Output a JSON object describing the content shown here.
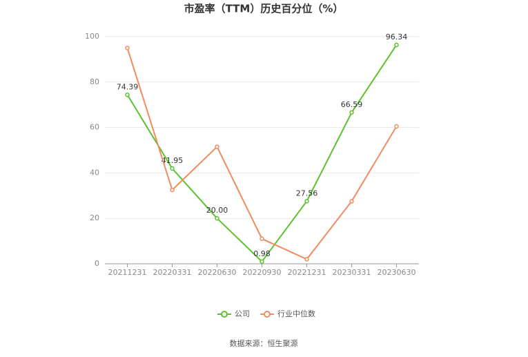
{
  "chart_data": {
    "type": "line",
    "title": "市盈率（TTM）历史百分位（%）",
    "categories": [
      "20211231",
      "20220331",
      "20220630",
      "20220930",
      "20221231",
      "20230331",
      "20230630"
    ],
    "series": [
      {
        "name": "公司",
        "color": "#5ac22b",
        "values": [
          74.39,
          41.95,
          20,
          0.98,
          27.56,
          66.59,
          96.34
        ],
        "value_labels": [
          "74.39",
          "41.95",
          "20.00",
          "0.98",
          "27.56",
          "66.59",
          "96.34"
        ]
      },
      {
        "name": "行业中位数",
        "color": "#f28a5e",
        "values": [
          95,
          32.5,
          51.5,
          11,
          2,
          27.5,
          60.5
        ]
      }
    ],
    "ylim": [
      0,
      100
    ],
    "yticks": [
      0,
      20,
      40,
      60,
      80,
      100
    ],
    "grid": true,
    "source": "数据来源：恒生聚源"
  }
}
